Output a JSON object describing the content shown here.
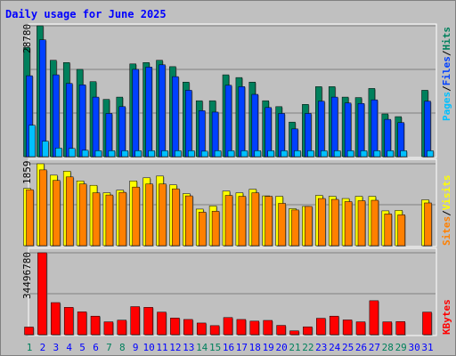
{
  "title": "Daily usage for June 2025",
  "colors": {
    "title": "#0000ff",
    "hits": "#00805c",
    "files": "#0040ff",
    "pages": "#00c0ff",
    "visits": "#ffff00",
    "sites": "#ff8000",
    "kbytes": "#ff0000",
    "weekend_day": "#00805c",
    "weekday": "#0000ff"
  },
  "chart_data": [
    {
      "type": "bar",
      "title": "Daily usage for June 2025",
      "categories": [
        "1",
        "2",
        "3",
        "4",
        "5",
        "6",
        "7",
        "8",
        "9",
        "10",
        "11",
        "12",
        "13",
        "14",
        "15",
        "16",
        "17",
        "18",
        "19",
        "20",
        "21",
        "22",
        "23",
        "24",
        "25",
        "26",
        "27",
        "28",
        "29",
        "30",
        "31"
      ],
      "ymax_label": "28780",
      "right_label": {
        "a": "Pages",
        "sep1": "/",
        "b": "Files",
        "sep2": "/",
        "c": "Hits"
      },
      "series": [
        {
          "name": "Hits",
          "values": [
            24000,
            28780,
            21200,
            20700,
            19200,
            16500,
            12600,
            13100,
            20400,
            20700,
            21200,
            19800,
            16400,
            12300,
            12300,
            18000,
            17400,
            16400,
            12300,
            11000,
            7600,
            11500,
            15400,
            15400,
            13100,
            13000,
            15000,
            9400,
            8800,
            0,
            14600
          ]
        },
        {
          "name": "Files",
          "values": [
            17800,
            25700,
            18000,
            16100,
            15800,
            13100,
            9500,
            11000,
            19200,
            19700,
            20200,
            17600,
            14600,
            10100,
            9800,
            15700,
            15400,
            13700,
            10800,
            9500,
            6100,
            9500,
            12200,
            13100,
            11800,
            11700,
            12500,
            8200,
            7500,
            0,
            12200
          ]
        },
        {
          "name": "Pages",
          "values": [
            6900,
            3400,
            1900,
            1800,
            1400,
            1300,
            1300,
            1300,
            1300,
            1300,
            1300,
            1300,
            1300,
            1200,
            1300,
            1300,
            1300,
            1300,
            1300,
            1300,
            1300,
            1300,
            1300,
            1300,
            1300,
            1300,
            1300,
            1300,
            1300,
            0,
            1300
          ]
        }
      ]
    },
    {
      "type": "bar",
      "categories": [
        "1",
        "2",
        "3",
        "4",
        "5",
        "6",
        "7",
        "8",
        "9",
        "10",
        "11",
        "12",
        "13",
        "14",
        "15",
        "16",
        "17",
        "18",
        "19",
        "20",
        "21",
        "22",
        "23",
        "24",
        "25",
        "26",
        "27",
        "28",
        "29",
        "30",
        "31"
      ],
      "ymax_label": "1859",
      "right_label": {
        "a": "Sites",
        "sep1": "/",
        "b": "Visits"
      },
      "series": [
        {
          "name": "Visits",
          "values": [
            1300,
            1859,
            1600,
            1690,
            1470,
            1370,
            1200,
            1260,
            1470,
            1540,
            1580,
            1380,
            1180,
            830,
            900,
            1240,
            1200,
            1280,
            1130,
            1120,
            840,
            890,
            1140,
            1120,
            1070,
            1120,
            1120,
            790,
            800,
            0,
            1040
          ]
        },
        {
          "name": "Sites",
          "values": [
            1270,
            1720,
            1480,
            1560,
            1400,
            1200,
            1150,
            1210,
            1330,
            1400,
            1400,
            1290,
            1130,
            760,
            780,
            1140,
            1120,
            1200,
            1120,
            960,
            810,
            890,
            1070,
            1050,
            1000,
            1020,
            1030,
            720,
            700,
            0,
            970
          ]
        }
      ]
    },
    {
      "type": "bar",
      "categories": [
        "1",
        "2",
        "3",
        "4",
        "5",
        "6",
        "7",
        "8",
        "9",
        "10",
        "11",
        "12",
        "13",
        "14",
        "15",
        "16",
        "17",
        "18",
        "19",
        "20",
        "21",
        "22",
        "23",
        "24",
        "25",
        "26",
        "27",
        "28",
        "29",
        "30",
        "31"
      ],
      "ymax_label": "34496780",
      "right_label": {
        "a": "KBytes"
      },
      "series": [
        {
          "name": "KBytes",
          "values": [
            3200000,
            34496780,
            13500000,
            11500000,
            9600000,
            7800000,
            5400000,
            6100000,
            11800000,
            11500000,
            9500000,
            7000000,
            6400000,
            4900000,
            3800000,
            7200000,
            6400000,
            5700000,
            6000000,
            3900000,
            1600000,
            3300000,
            6900000,
            7800000,
            6200000,
            5400000,
            14300000,
            5400000,
            5500000,
            0,
            9500000
          ]
        }
      ]
    }
  ],
  "x_axis": {
    "labels": [
      "1",
      "2",
      "3",
      "4",
      "5",
      "6",
      "7",
      "8",
      "9",
      "10",
      "11",
      "12",
      "13",
      "14",
      "15",
      "16",
      "17",
      "18",
      "19",
      "20",
      "21",
      "22",
      "23",
      "24",
      "25",
      "26",
      "27",
      "28",
      "29",
      "30",
      "31"
    ],
    "weekend": [
      true,
      false,
      false,
      false,
      false,
      false,
      true,
      true,
      false,
      false,
      false,
      false,
      false,
      true,
      true,
      false,
      false,
      false,
      false,
      false,
      true,
      true,
      false,
      false,
      false,
      false,
      false,
      true,
      true,
      false,
      false
    ]
  }
}
